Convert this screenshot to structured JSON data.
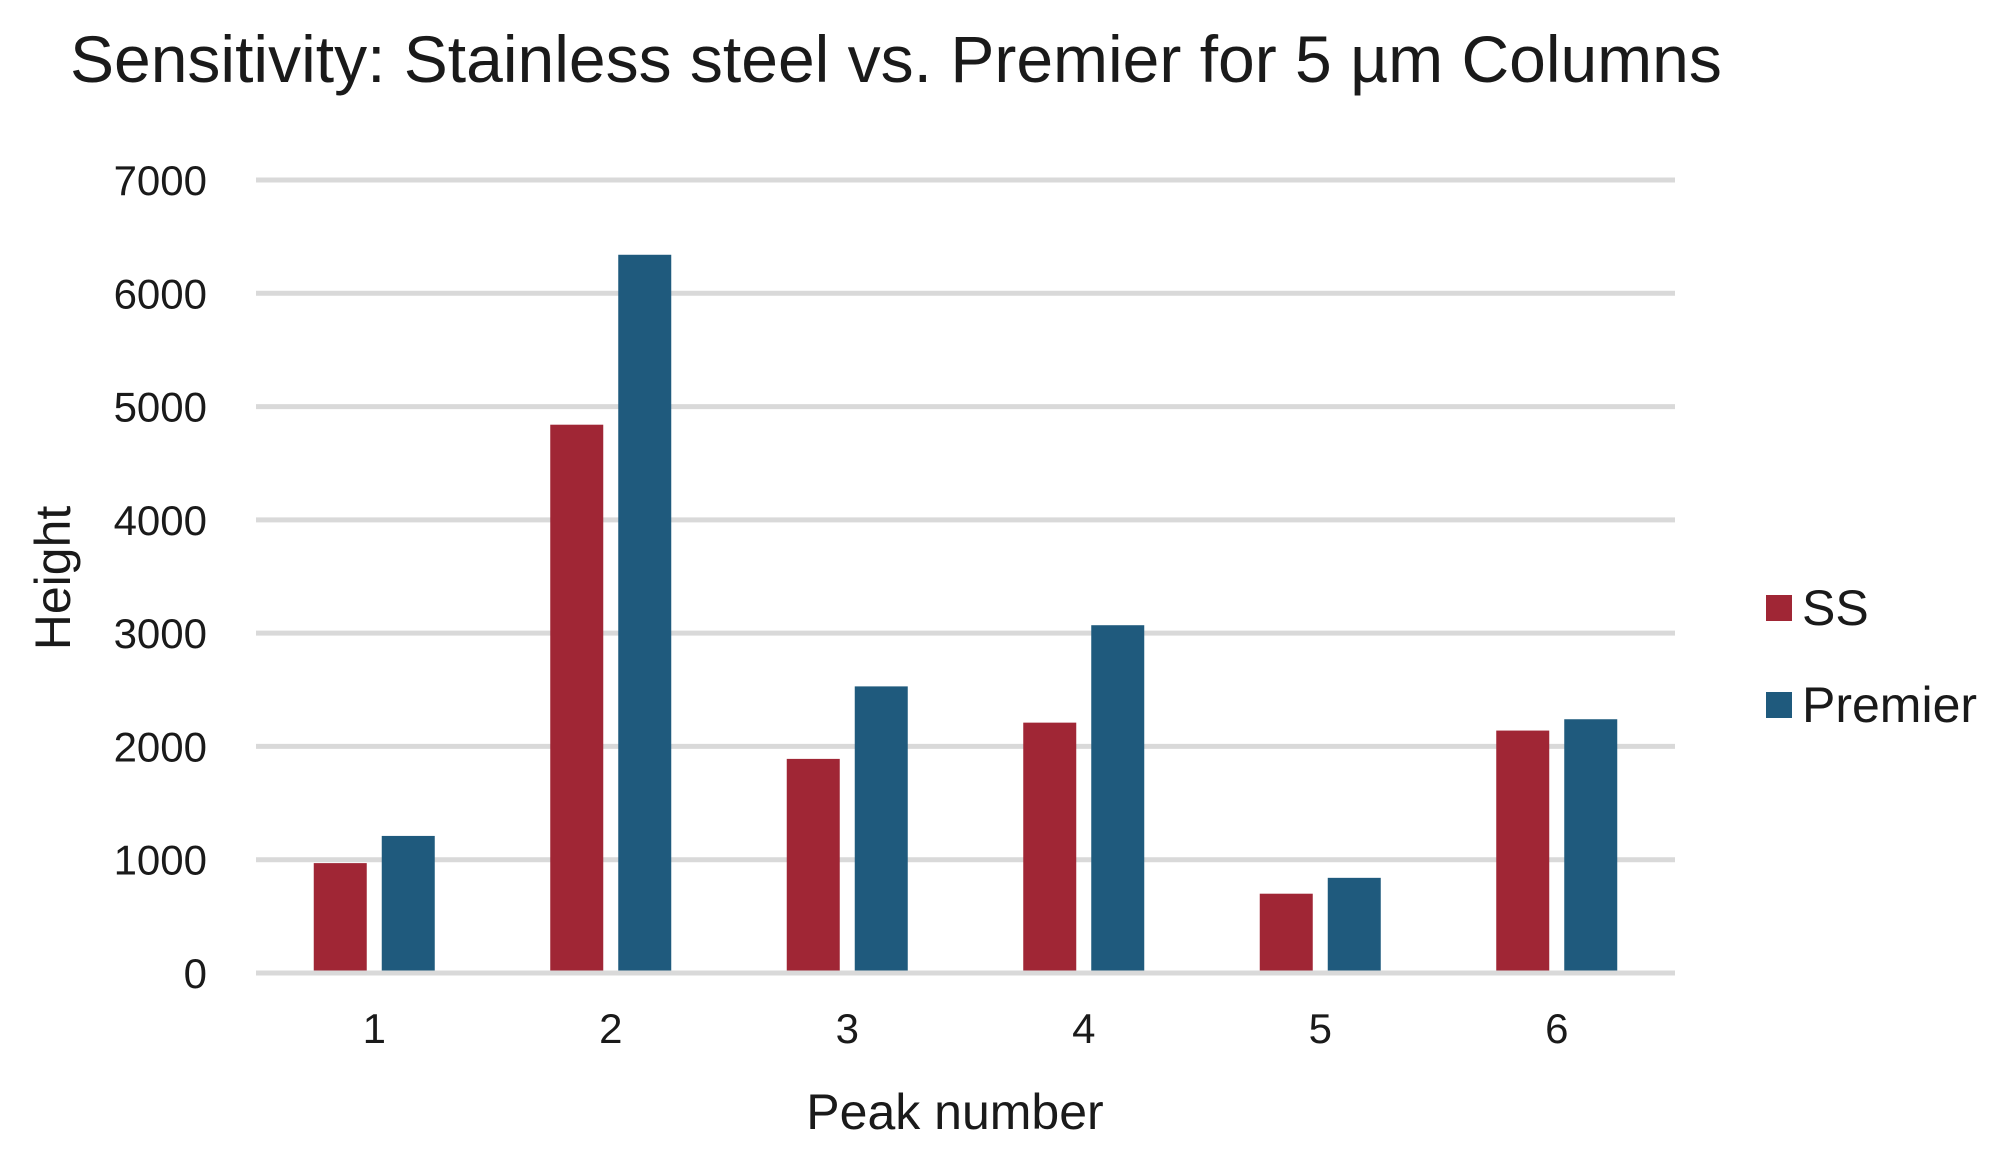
{
  "chart_data": {
    "type": "bar",
    "title": "Sensitivity: Stainless steel vs. Premier for 5 µm Columns",
    "xlabel": "Peak number",
    "ylabel": "Height",
    "categories": [
      "1",
      "2",
      "3",
      "4",
      "5",
      "6"
    ],
    "ylim": [
      0,
      7000
    ],
    "yticks": [
      "0",
      "1000",
      "2000",
      "3000",
      "4000",
      "5000",
      "6000",
      "7000"
    ],
    "grid": true,
    "legend_position": "right",
    "series": [
      {
        "name": "SS",
        "color": "#a02635",
        "values": [
          970,
          4840,
          1890,
          2210,
          700,
          2140
        ]
      },
      {
        "name": "Premier",
        "color": "#1f5a7d",
        "values": [
          1210,
          6340,
          2530,
          3070,
          840,
          2240
        ]
      }
    ]
  }
}
